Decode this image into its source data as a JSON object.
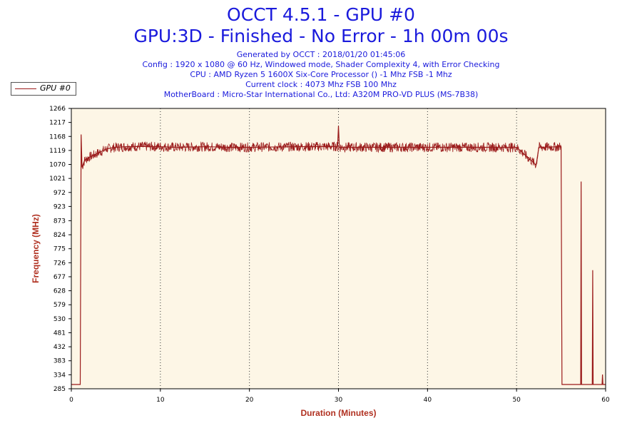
{
  "header": {
    "title": "OCCT 4.5.1 - GPU #0",
    "subtitle": "GPU:3D - Finished - No Error - 1h 00m 00s",
    "info_lines": [
      "Generated by OCCT : 2018/01/20 01:45:06",
      "Config : 1920 x 1080 @ 60 Hz, Windowed mode, Shader Complexity 4, with Error Checking",
      "CPU : AMD Ryzen 5 1600X Six-Core Processor () -1 Mhz FSB -1 Mhz",
      "Current clock : 4073 Mhz FSB 100 Mhz",
      "MotherBoard : Micro-Star International Co., Ltd: A320M PRO-VD PLUS (MS-7B38)"
    ]
  },
  "colors": {
    "series": "#9b1b1b",
    "plot_bg": "#fdf6e6",
    "title": "#1a1adc",
    "axis_label": "#b03020"
  },
  "chart_data": {
    "type": "line",
    "title": "OCCT 4.5.1 - GPU #0",
    "xlabel": "Duration (Minutes)",
    "ylabel": "Frequency (MHz)",
    "xlim": [
      0,
      60
    ],
    "ylim": [
      285,
      1266
    ],
    "xticks": [
      0,
      10,
      20,
      30,
      40,
      50,
      60
    ],
    "yticks": [
      285,
      334,
      383,
      432,
      481,
      530,
      579,
      628,
      677,
      726,
      775,
      824,
      873,
      923,
      972,
      1021,
      1070,
      1119,
      1168,
      1217,
      1266
    ],
    "grid": "vertical dotted",
    "legend": "top-left",
    "series": [
      {
        "name": "GPU #0",
        "points": [
          [
            0,
            300
          ],
          [
            1.0,
            300
          ],
          [
            1.1,
            1175
          ],
          [
            1.2,
            1060
          ],
          [
            1.5,
            1085
          ],
          [
            2,
            1095
          ],
          [
            3,
            1110
          ],
          [
            4,
            1125
          ],
          [
            5,
            1130
          ],
          [
            6,
            1132
          ],
          [
            8,
            1133
          ],
          [
            10,
            1132
          ],
          [
            12,
            1130
          ],
          [
            15,
            1132
          ],
          [
            18,
            1130
          ],
          [
            20,
            1130
          ],
          [
            25,
            1132
          ],
          [
            29.9,
            1133
          ],
          [
            30.0,
            1205
          ],
          [
            30.1,
            1130
          ],
          [
            35,
            1130
          ],
          [
            40,
            1130
          ],
          [
            45,
            1130
          ],
          [
            50,
            1130
          ],
          [
            52.2,
            1068
          ],
          [
            52.5,
            1130
          ],
          [
            55,
            1132
          ],
          [
            55.1,
            300
          ],
          [
            56,
            300
          ],
          [
            57.2,
            300
          ],
          [
            57.25,
            1010
          ],
          [
            57.3,
            300
          ],
          [
            58.5,
            300
          ],
          [
            58.55,
            700
          ],
          [
            58.6,
            300
          ],
          [
            59.6,
            300
          ],
          [
            59.65,
            335
          ],
          [
            59.7,
            300
          ],
          [
            60,
            300
          ]
        ]
      }
    ]
  }
}
